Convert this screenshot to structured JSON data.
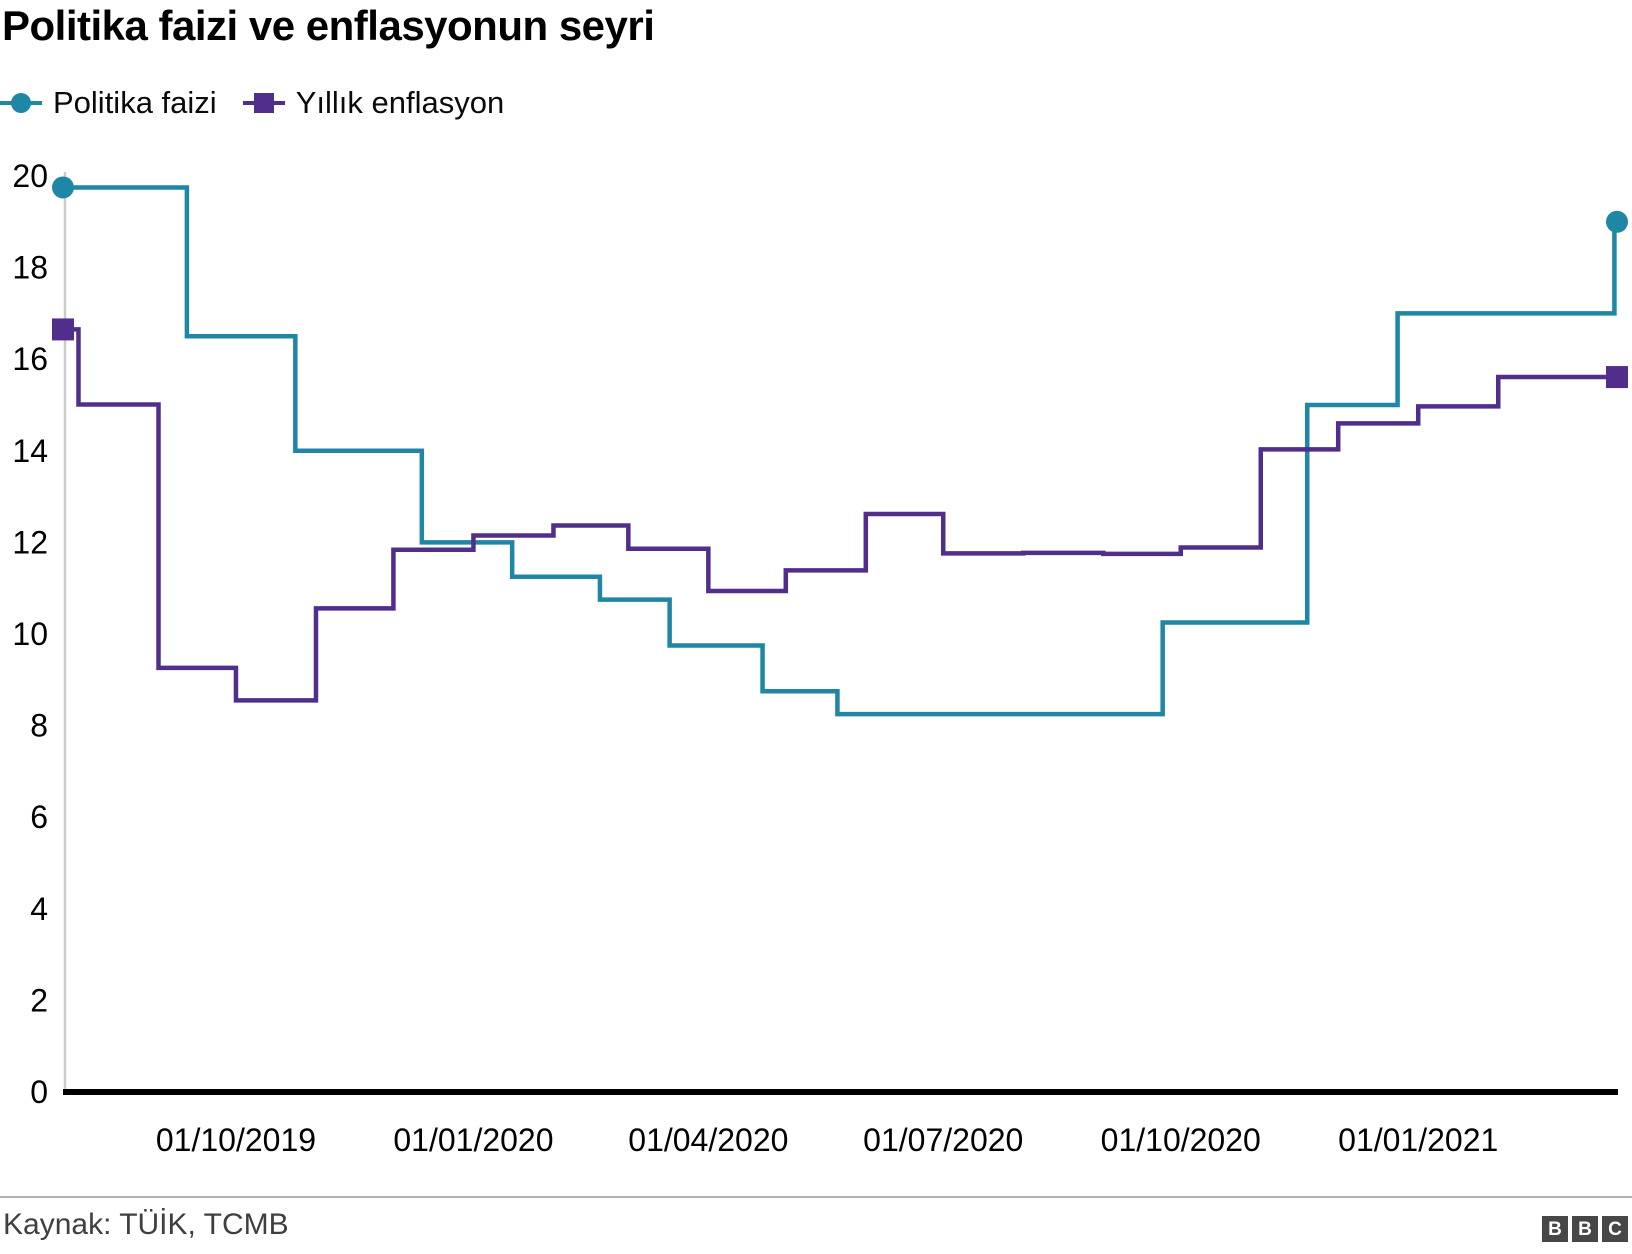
{
  "title": "Politika faizi ve enflasyonun seyri",
  "legend": [
    {
      "label": "Politika faizi",
      "marker": "circle",
      "color": "#1F86A6"
    },
    {
      "label": "Yıllık enflasyon",
      "marker": "square",
      "color": "#522E8C"
    }
  ],
  "footer": {
    "source": "Kaynak: TÜİK, TCMB",
    "logo_letters": [
      "B",
      "B",
      "C"
    ]
  },
  "chart_data": {
    "type": "line",
    "step": true,
    "title": "Politika faizi ve enflasyonun seyri",
    "xlabel": "",
    "ylabel": "",
    "ylim": [
      0,
      20
    ],
    "grid": false,
    "legend_position": "top-left",
    "x_domain": [
      "2019-07-26",
      "2021-03-19"
    ],
    "y_ticks": [
      0,
      2,
      4,
      6,
      8,
      10,
      12,
      14,
      16,
      18,
      20
    ],
    "x_ticks": [
      {
        "date": "2019-10-01",
        "label": "01/10/2019"
      },
      {
        "date": "2020-01-01",
        "label": "01/01/2020"
      },
      {
        "date": "2020-04-01",
        "label": "01/04/2020"
      },
      {
        "date": "2020-07-01",
        "label": "01/07/2020"
      },
      {
        "date": "2020-10-01",
        "label": "01/10/2020"
      },
      {
        "date": "2021-01-01",
        "label": "01/01/2021"
      }
    ],
    "series": [
      {
        "name": "Politika faizi",
        "color": "#1F86A6",
        "marker": "circle",
        "points": [
          [
            "2019-07-26",
            19.75
          ],
          [
            "2019-09-12",
            16.5
          ],
          [
            "2019-10-24",
            14.0
          ],
          [
            "2019-12-12",
            12.0
          ],
          [
            "2020-01-16",
            11.25
          ],
          [
            "2020-02-19",
            10.75
          ],
          [
            "2020-03-17",
            9.75
          ],
          [
            "2020-04-22",
            8.75
          ],
          [
            "2020-05-21",
            8.25
          ],
          [
            "2020-09-24",
            10.25
          ],
          [
            "2020-11-19",
            15.0
          ],
          [
            "2020-12-24",
            17.0
          ],
          [
            "2021-03-18",
            19.0
          ]
        ]
      },
      {
        "name": "Yıllık enflasyon",
        "color": "#522E8C",
        "marker": "square",
        "points": [
          [
            "2019-07-26",
            16.65
          ],
          [
            "2019-08-01",
            15.01
          ],
          [
            "2019-09-01",
            9.26
          ],
          [
            "2019-10-01",
            8.55
          ],
          [
            "2019-11-01",
            10.56
          ],
          [
            "2019-12-01",
            11.84
          ],
          [
            "2020-01-01",
            12.15
          ],
          [
            "2020-02-01",
            12.37
          ],
          [
            "2020-03-01",
            11.86
          ],
          [
            "2020-04-01",
            10.94
          ],
          [
            "2020-05-01",
            11.39
          ],
          [
            "2020-06-01",
            12.62
          ],
          [
            "2020-07-01",
            11.76
          ],
          [
            "2020-08-01",
            11.77
          ],
          [
            "2020-09-01",
            11.75
          ],
          [
            "2020-10-01",
            11.89
          ],
          [
            "2020-11-01",
            14.03
          ],
          [
            "2020-12-01",
            14.6
          ],
          [
            "2021-01-01",
            14.97
          ],
          [
            "2021-02-01",
            15.61
          ]
        ]
      }
    ]
  }
}
